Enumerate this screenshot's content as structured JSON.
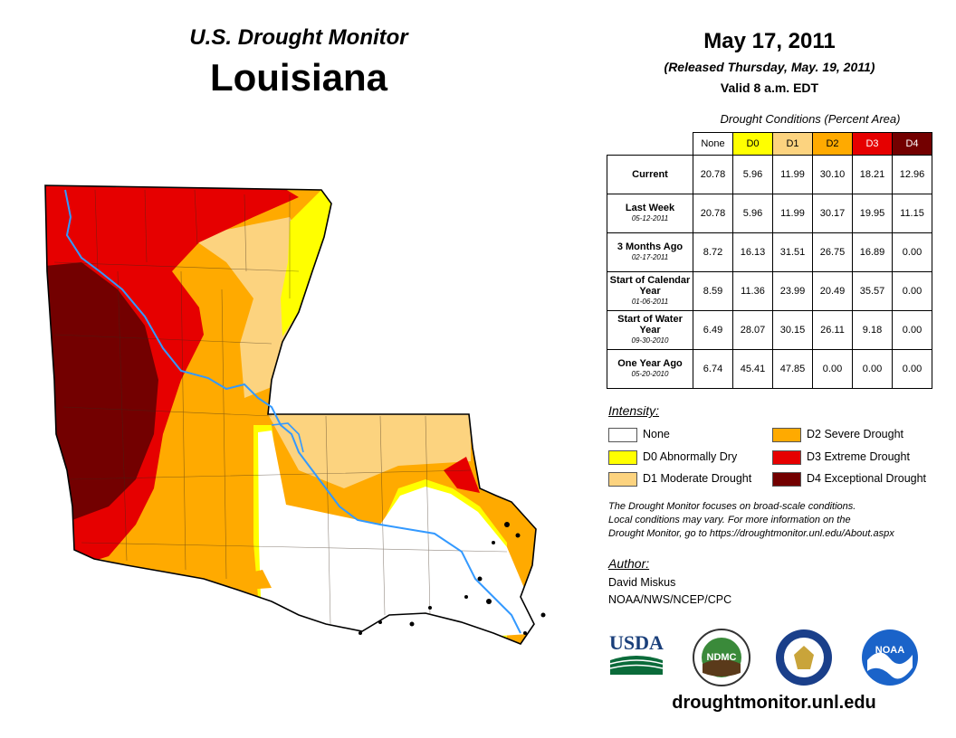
{
  "header": {
    "monitor_title": "U.S. Drought Monitor",
    "region": "Louisiana",
    "date": "May 17, 2011",
    "released": "(Released Thursday, May. 19, 2011)",
    "valid": "Valid 8 a.m. EDT"
  },
  "table": {
    "caption": "Drought Conditions (Percent Area)",
    "columns": [
      {
        "label": "None",
        "color": "#ffffff"
      },
      {
        "label": "D0",
        "color": "#ffff00"
      },
      {
        "label": "D1",
        "color": "#fcd37f"
      },
      {
        "label": "D2",
        "color": "#ffaa00"
      },
      {
        "label": "D3",
        "color": "#e60000"
      },
      {
        "label": "D4",
        "color": "#730000"
      }
    ],
    "rows": [
      {
        "label": "Current",
        "date": "",
        "values": [
          "20.78",
          "5.96",
          "11.99",
          "30.10",
          "18.21",
          "12.96"
        ]
      },
      {
        "label": "Last Week",
        "date": "05-12-2011",
        "values": [
          "20.78",
          "5.96",
          "11.99",
          "30.17",
          "19.95",
          "11.15"
        ]
      },
      {
        "label": "3 Months Ago",
        "date": "02-17-2011",
        "values": [
          "8.72",
          "16.13",
          "31.51",
          "26.75",
          "16.89",
          "0.00"
        ]
      },
      {
        "label": "Start of Calendar Year",
        "date": "01-06-2011",
        "values": [
          "8.59",
          "11.36",
          "23.99",
          "20.49",
          "35.57",
          "0.00"
        ]
      },
      {
        "label": "Start of Water Year",
        "date": "09-30-2010",
        "values": [
          "6.49",
          "28.07",
          "30.15",
          "26.11",
          "9.18",
          "0.00"
        ]
      },
      {
        "label": "One Year Ago",
        "date": "05-20-2010",
        "values": [
          "6.74",
          "45.41",
          "47.85",
          "0.00",
          "0.00",
          "0.00"
        ]
      }
    ]
  },
  "legend": {
    "title": "Intensity:",
    "items": [
      {
        "label": "None",
        "color": "#ffffff"
      },
      {
        "label": "D0 Abnormally Dry",
        "color": "#ffff00"
      },
      {
        "label": "D1 Moderate Drought",
        "color": "#fcd37f"
      },
      {
        "label": "D2 Severe Drought",
        "color": "#ffaa00"
      },
      {
        "label": "D3 Extreme Drought",
        "color": "#e60000"
      },
      {
        "label": "D4 Exceptional Drought",
        "color": "#730000"
      }
    ]
  },
  "note": {
    "line1": "The Drought Monitor focuses on broad-scale conditions.",
    "line2": "Local conditions may vary. For more information on the",
    "line3": "Drought Monitor, go to https://droughtmonitor.unl.edu/About.aspx"
  },
  "author": {
    "title": "Author:",
    "name": "David Miskus",
    "org": "NOAA/NWS/NCEP/CPC"
  },
  "logos": {
    "usda": "USDA",
    "ndmc": "NDMC",
    "noaa": "NOAA"
  },
  "footer_url": "droughtmonitor.unl.edu",
  "colors": {
    "river": "#3399ff",
    "d0": "#ffff00",
    "d1": "#fcd37f",
    "d2": "#ffaa00",
    "d3": "#e60000",
    "d4": "#730000"
  }
}
